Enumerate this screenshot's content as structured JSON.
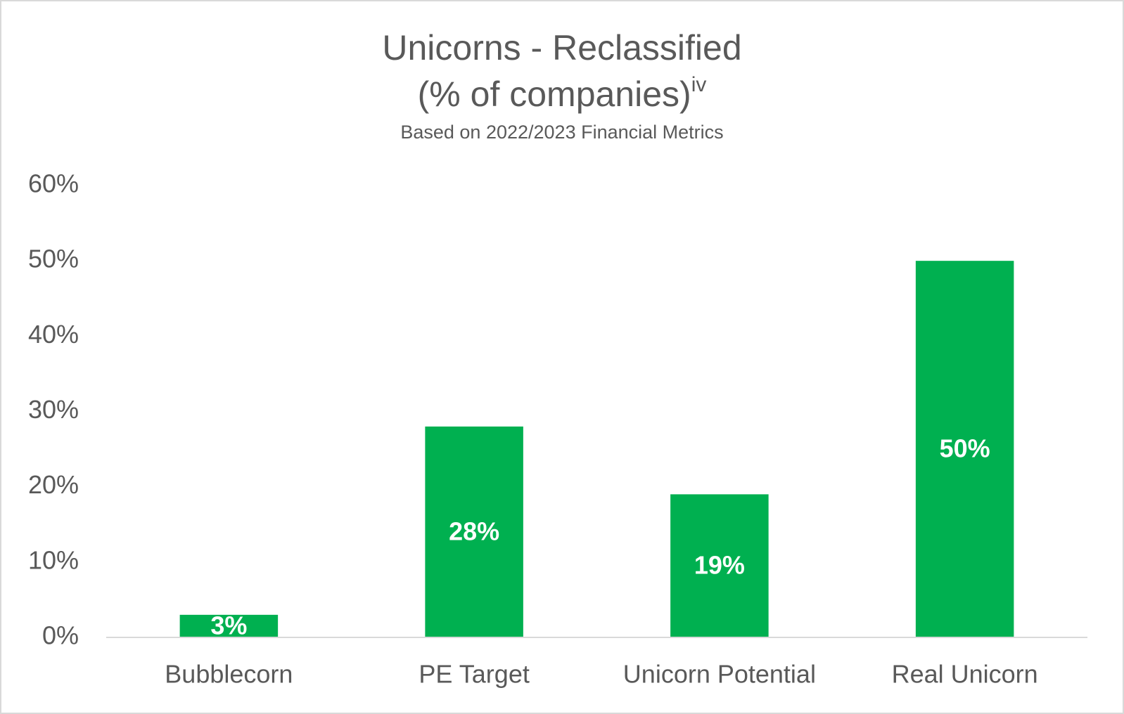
{
  "chart_data": {
    "type": "bar",
    "title": [
      "Unicorns - Reclassified",
      "(% of companies)"
    ],
    "title_superscript": "iv",
    "subtitle": "Based on 2022/2023 Financial Metrics",
    "categories": [
      "Bubblecorn",
      "PE Target",
      "Unicorn Potential",
      "Real Unicorn"
    ],
    "values": [
      3,
      28,
      19,
      50
    ],
    "value_labels": [
      "3%",
      "28%",
      "19%",
      "50%"
    ],
    "color": "#00b050",
    "ylim": [
      0,
      60
    ],
    "yticks": [
      {
        "value": 0,
        "label": "0%"
      },
      {
        "value": 10,
        "label": "10%"
      },
      {
        "value": 20,
        "label": "20%"
      },
      {
        "value": 30,
        "label": "30%"
      },
      {
        "value": 40,
        "label": "40%"
      },
      {
        "value": 50,
        "label": "50%"
      },
      {
        "value": 60,
        "label": "60%"
      }
    ],
    "grid": false
  }
}
